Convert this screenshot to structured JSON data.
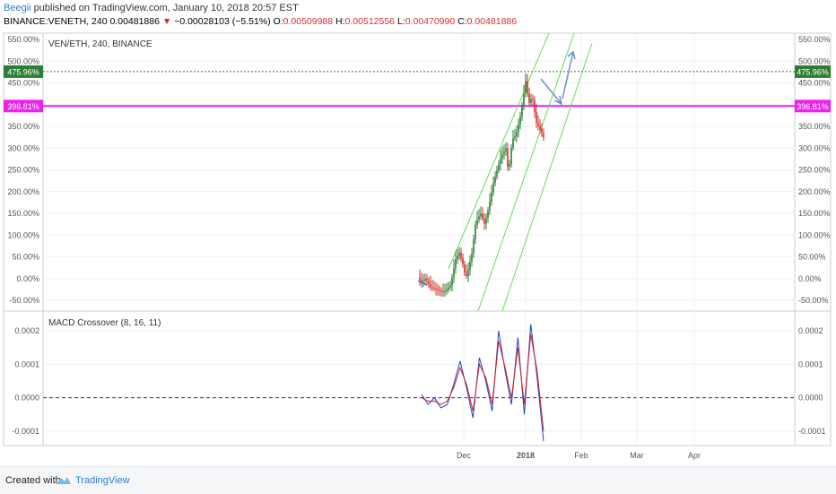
{
  "header": {
    "author": "Beegii",
    "published_text": "published on TradingView.com, January 10, 2018 20:57 EST",
    "symbol_line": "BINANCE:VENETH, 240",
    "last": "0.00481886",
    "arrow": "▼",
    "change": "−0.00028103 (−5.51%)",
    "o_label": "O:",
    "o_value": "0.00509988",
    "h_label": "H:",
    "h_value": "0.00512556",
    "l_label": "L:",
    "l_value": "0.00470990",
    "c_label": "C:",
    "c_value": "0.00481886"
  },
  "footer": {
    "created_with": "Created with",
    "brand": "TradingView"
  },
  "colors": {
    "up": "#2e7d32",
    "down": "#d32f2f",
    "channel": "#66dd55",
    "resistance": "#ee22ee",
    "support_dotted": "#2e7d32",
    "arrow": "#6e8fc4",
    "macd": "#2244cc",
    "signal": "#cc2222",
    "zero": "#990066"
  },
  "icons": {
    "tv_logo": "tradingview-logo-icon"
  },
  "chart_data": [
    {
      "type": "candlestick",
      "title": "VEN/ETH, 240, BINANCE",
      "y_unit": "percent",
      "ylim": [
        -60,
        560
      ],
      "y_ticks": [
        "550.00%",
        "500.00%",
        "450.00%",
        "400.00%",
        "350.00%",
        "300.00%",
        "250.00%",
        "200.00%",
        "150.00%",
        "100.00%",
        "50.00%",
        "0.00%",
        "-50.00%"
      ],
      "x_ticks": [
        "Dec",
        "2018",
        "Feb",
        "Mar",
        "Apr"
      ],
      "grid": true,
      "horizontal_lines": [
        {
          "value": 475.96,
          "label": "475.96%",
          "style": "dotted",
          "color": "#2e7d32"
        },
        {
          "value": 396.81,
          "label": "396.81%",
          "style": "solid",
          "color": "#ee22ee"
        }
      ],
      "price_path_percent": [
        [
          0,
          2
        ],
        [
          0.03,
          -8
        ],
        [
          0.06,
          0
        ],
        [
          0.1,
          -20
        ],
        [
          0.15,
          -25
        ],
        [
          0.2,
          -32
        ],
        [
          0.22,
          -28
        ],
        [
          0.26,
          -15
        ],
        [
          0.3,
          45
        ],
        [
          0.33,
          60
        ],
        [
          0.36,
          30
        ],
        [
          0.38,
          0
        ],
        [
          0.4,
          20
        ],
        [
          0.43,
          60
        ],
        [
          0.46,
          130
        ],
        [
          0.5,
          150
        ],
        [
          0.53,
          125
        ],
        [
          0.56,
          160
        ],
        [
          0.6,
          220
        ],
        [
          0.63,
          250
        ],
        [
          0.66,
          280
        ],
        [
          0.7,
          300
        ],
        [
          0.72,
          240
        ],
        [
          0.75,
          320
        ],
        [
          0.78,
          330
        ],
        [
          0.82,
          380
        ],
        [
          0.86,
          460
        ],
        [
          0.88,
          400
        ],
        [
          0.91,
          420
        ],
        [
          0.94,
          360
        ],
        [
          0.97,
          345
        ],
        [
          1.0,
          325
        ]
      ],
      "channel_lines": 3
    },
    {
      "type": "line",
      "title": "MACD Crossover (8, 16, 11)",
      "ylim": [
        -0.00014,
        0.00024
      ],
      "y_ticks": [
        "0.0002",
        "0.0001",
        "0.0000",
        "-0.0001"
      ],
      "series": [
        {
          "values": [
            1e-05,
            -2e-05,
            0.0,
            -3e-05,
            -2e-05,
            4e-05,
            0.00011,
            3e-05,
            -6e-05,
            0.00012,
            5e-05,
            -4e-05,
            0.0002,
            8e-05,
            -2e-05,
            0.00018,
            -5e-05,
            0.00022,
            6e-05,
            -0.00013
          ]
        },
        {
          "values": [
            0.0,
            -1e-05,
            -1e-05,
            -2e-05,
            -1e-05,
            3e-05,
            9e-05,
            4e-05,
            -4e-05,
            0.0001,
            6e-05,
            -2e-05,
            0.00017,
            9e-05,
            0.0,
            0.00015,
            -2e-05,
            0.00019,
            8e-05,
            -0.0001
          ]
        }
      ]
    }
  ]
}
